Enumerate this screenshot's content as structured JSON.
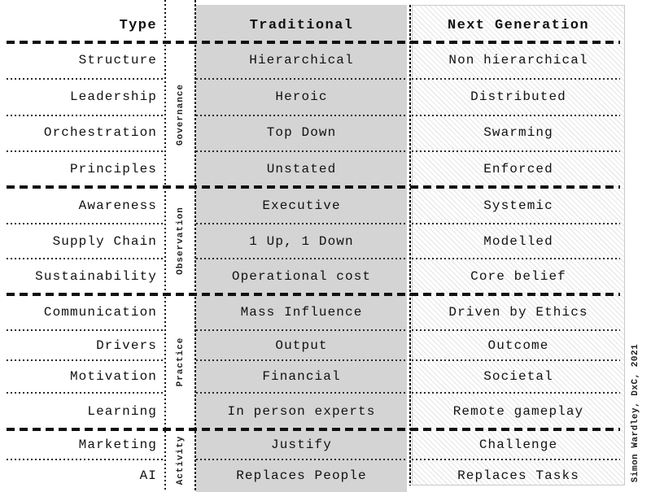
{
  "table": {
    "header": {
      "type": "Type",
      "traditional": "Traditional",
      "next_generation": "Next Generation"
    },
    "group_labels": [
      "Governance",
      "Observation",
      "Practice",
      "Activity"
    ],
    "rows": [
      {
        "type": "Structure",
        "traditional": "Hierarchical",
        "next_generation": "Non hierarchical"
      },
      {
        "type": "Leadership",
        "traditional": "Heroic",
        "next_generation": "Distributed"
      },
      {
        "type": "Orchestration",
        "traditional": "Top Down",
        "next_generation": "Swarming"
      },
      {
        "type": "Principles",
        "traditional": "Unstated",
        "next_generation": "Enforced"
      },
      {
        "type": "Awareness",
        "traditional": "Executive",
        "next_generation": "Systemic"
      },
      {
        "type": "Supply Chain",
        "traditional": "1 Up, 1 Down",
        "next_generation": "Modelled"
      },
      {
        "type": "Sustainability",
        "traditional": "Operational cost",
        "next_generation": "Core belief"
      },
      {
        "type": "Communication",
        "traditional": "Mass Influence",
        "next_generation": "Driven by Ethics"
      },
      {
        "type": "Drivers",
        "traditional": "Output",
        "next_generation": "Outcome"
      },
      {
        "type": "Motivation",
        "traditional": "Financial",
        "next_generation": "Societal"
      },
      {
        "type": "Learning",
        "traditional": "In person experts",
        "next_generation": "Remote gameplay"
      },
      {
        "type": "Marketing",
        "traditional": "Justify",
        "next_generation": "Challenge"
      },
      {
        "type": "AI",
        "traditional": "Replaces People",
        "next_generation": "Replaces Tasks"
      }
    ]
  },
  "attribution": "Simon Wardley, DxC, 2021",
  "colors": {
    "traditional_bg": "#d4d4d4",
    "hatch_line": "#ececec",
    "separator_line": "#111111"
  }
}
